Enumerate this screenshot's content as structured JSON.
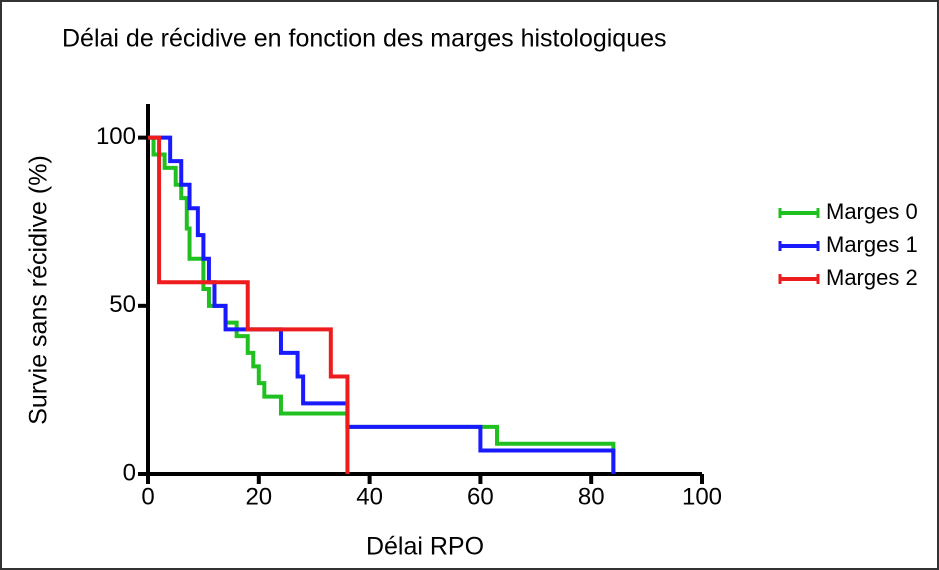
{
  "chart_data": {
    "type": "step",
    "title": "Délai de récidive en fonction des marges histologiques",
    "x_label": "Délai RPO",
    "y_label": "Survie sans récidive (%)",
    "xlim": [
      0,
      100
    ],
    "xticks": [
      0,
      20,
      40,
      60,
      80,
      100
    ],
    "ylim": [
      0,
      110
    ],
    "yticks": [
      0,
      50,
      100
    ],
    "legend": "right",
    "series": [
      {
        "name": "Marges 0",
        "color": "#1fc01f",
        "x": [
          0,
          1,
          3,
          5,
          6,
          7,
          7.5,
          10,
          11,
          14,
          16,
          18,
          19,
          20,
          21,
          24,
          36,
          63,
          84
        ],
        "values": [
          100,
          95,
          91,
          86,
          82,
          73,
          64,
          55,
          50,
          45,
          41,
          36,
          32,
          27,
          23,
          18,
          14,
          9,
          0
        ]
      },
      {
        "name": "Marges 1",
        "color": "#1a1aff",
        "x": [
          0,
          4,
          6,
          7.5,
          9,
          10,
          11,
          12,
          14,
          24,
          27,
          28,
          36,
          60,
          84
        ],
        "values": [
          100,
          93,
          86,
          79,
          71,
          64,
          57,
          50,
          43,
          36,
          29,
          21,
          14,
          7,
          0
        ]
      },
      {
        "name": "Marges 2",
        "color": "#ee1c1c",
        "x": [
          0,
          2,
          18,
          33,
          36
        ],
        "values": [
          100,
          57,
          43,
          29,
          0
        ]
      }
    ]
  }
}
